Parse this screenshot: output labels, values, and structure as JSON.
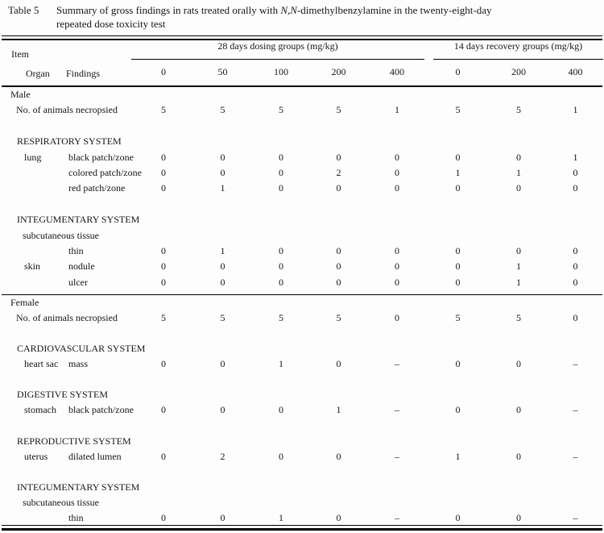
{
  "title": {
    "label": "Table 5",
    "caption_pre": "Summary of gross findings in rats treated orally with ",
    "caption_italic": "N,N",
    "caption_post": "-dimethylbenzylamine in the twenty-eight-day",
    "caption_line2": "repeated dose toxicity test"
  },
  "header": {
    "item_label": "Item",
    "organ_label": "Organ",
    "findings_label": "Findings",
    "groups": [
      {
        "label": "28 days dosing groups (mg/kg)",
        "doses": [
          "0",
          "50",
          "100",
          "200",
          "400"
        ]
      },
      {
        "label": "14 days recovery groups (mg/kg)",
        "doses": [
          "0",
          "200",
          "400"
        ]
      }
    ]
  },
  "sections": [
    {
      "sex": "Male",
      "rows": [
        {
          "type": "stat",
          "label": "No. of animals necropsied",
          "values": [
            "5",
            "5",
            "5",
            "5",
            "1",
            "5",
            "5",
            "1"
          ]
        },
        {
          "type": "spacer"
        },
        {
          "type": "system",
          "label": "RESPIRATORY SYSTEM"
        },
        {
          "type": "finding",
          "organ": "lung",
          "finding": "black patch/zone",
          "values": [
            "0",
            "0",
            "0",
            "0",
            "0",
            "0",
            "0",
            "1"
          ]
        },
        {
          "type": "finding",
          "organ": "",
          "finding": "colored patch/zone",
          "values": [
            "0",
            "0",
            "0",
            "2",
            "0",
            "1",
            "1",
            "0"
          ]
        },
        {
          "type": "finding",
          "organ": "",
          "finding": "red patch/zone",
          "values": [
            "0",
            "1",
            "0",
            "0",
            "0",
            "0",
            "0",
            "0"
          ]
        },
        {
          "type": "spacer"
        },
        {
          "type": "system",
          "label": "INTEGUMENTARY SYSTEM"
        },
        {
          "type": "organ",
          "label": "subcutaneous tissue"
        },
        {
          "type": "finding",
          "organ": "",
          "finding": "thin",
          "values": [
            "0",
            "1",
            "0",
            "0",
            "0",
            "0",
            "0",
            "0"
          ]
        },
        {
          "type": "finding",
          "organ": "skin",
          "finding": "nodule",
          "values": [
            "0",
            "0",
            "0",
            "0",
            "0",
            "0",
            "1",
            "0"
          ]
        },
        {
          "type": "finding",
          "organ": "",
          "finding": "ulcer",
          "values": [
            "0",
            "0",
            "0",
            "0",
            "0",
            "0",
            "1",
            "0"
          ]
        }
      ]
    },
    {
      "sex": "Female",
      "rows": [
        {
          "type": "stat",
          "label": "No. of animals necropsied",
          "values": [
            "5",
            "5",
            "5",
            "5",
            "0",
            "5",
            "5",
            "0"
          ]
        },
        {
          "type": "spacer"
        },
        {
          "type": "system",
          "label": "CARDIOVASCULAR SYSTEM"
        },
        {
          "type": "finding",
          "organ": "heart sac",
          "finding": "mass",
          "values": [
            "0",
            "0",
            "1",
            "0",
            "–",
            "0",
            "0",
            "–"
          ]
        },
        {
          "type": "spacer"
        },
        {
          "type": "system",
          "label": "DIGESTIVE SYSTEM"
        },
        {
          "type": "finding",
          "organ": "stomach",
          "finding": "black patch/zone",
          "values": [
            "0",
            "0",
            "0",
            "1",
            "–",
            "0",
            "0",
            "–"
          ]
        },
        {
          "type": "spacer"
        },
        {
          "type": "system",
          "label": "REPRODUCTIVE SYSTEM"
        },
        {
          "type": "finding",
          "organ": "uterus",
          "finding": "dilated lumen",
          "values": [
            "0",
            "2",
            "0",
            "0",
            "–",
            "1",
            "0",
            "–"
          ]
        },
        {
          "type": "spacer"
        },
        {
          "type": "system",
          "label": "INTEGUMENTARY SYSTEM"
        },
        {
          "type": "organ",
          "label": "subcutaneous tissue"
        },
        {
          "type": "finding",
          "organ": "",
          "finding": "thin",
          "values": [
            "0",
            "0",
            "1",
            "0",
            "–",
            "0",
            "0",
            "–"
          ]
        }
      ]
    }
  ]
}
